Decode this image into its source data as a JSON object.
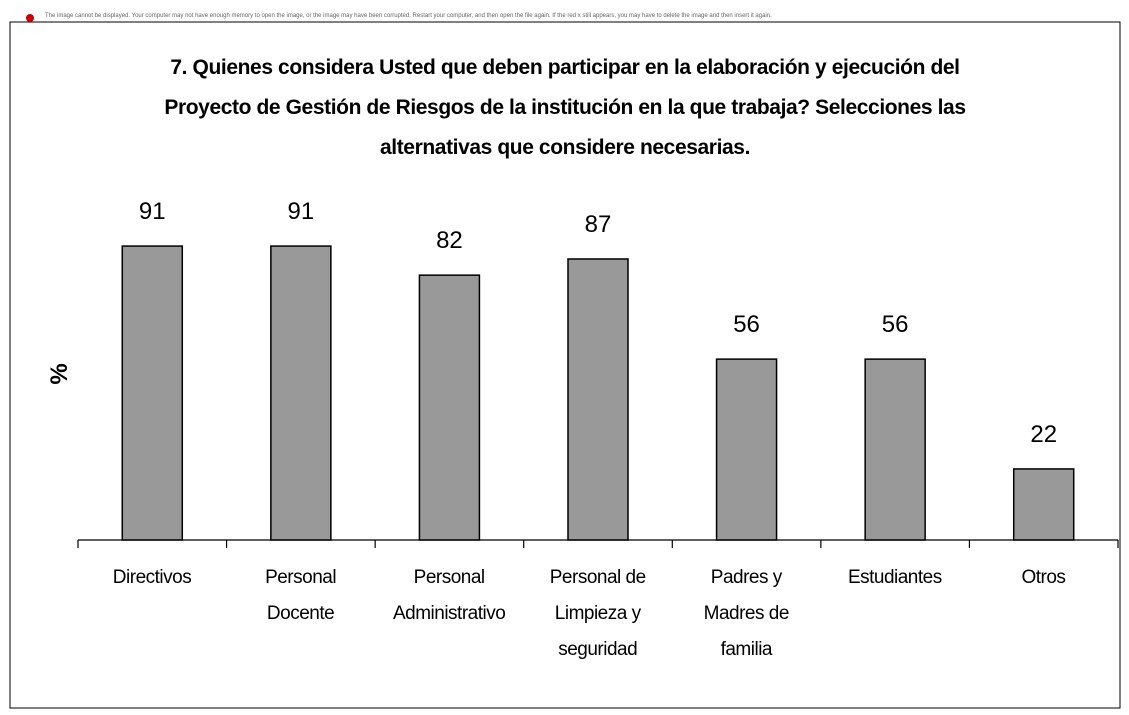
{
  "notice": "The image cannot be displayed. Your computer may not have enough memory to open the image, or the image may have been corrupted. Restart your computer, and then open the file again. If the red x still appears, you may have to delete the image and then insert it again.",
  "chart_data": {
    "type": "bar",
    "title": "7. Quienes considera Usted que deben participar en la elaboración y ejecución  del\nProyecto de Gestión de Riesgos de la institución en la que trabaja? Selecciones las\nalternativas que considere necesarias.",
    "y_label": "%",
    "categories": [
      "Directivos",
      "Personal\nDocente",
      "Personal\nAdministrativo",
      "Personal de\nLimpieza y\nseguridad",
      "Padres y\nMadres de\nfamilia",
      "Estudiantes",
      "Otros"
    ],
    "values": [
      91,
      91,
      82,
      87,
      56,
      56,
      22
    ],
    "color": "#999999",
    "ylim": [
      0,
      100
    ]
  }
}
